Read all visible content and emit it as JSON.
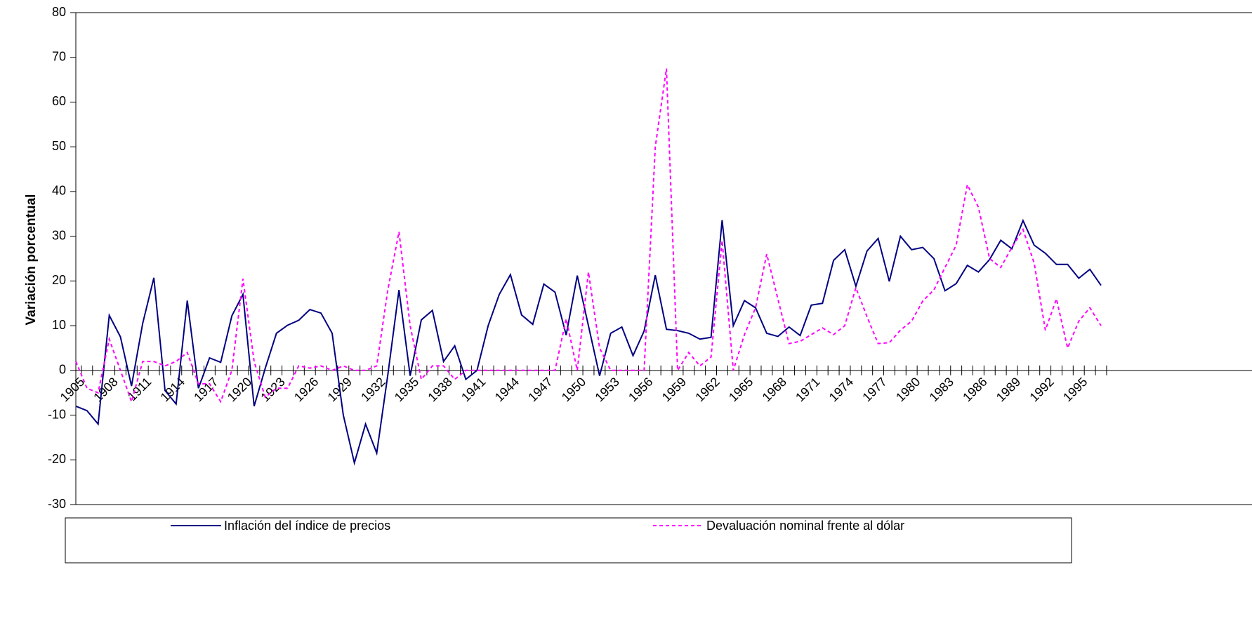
{
  "chart_data": {
    "type": "line",
    "ylabel": "Variación porcentual",
    "categories": [
      "1905",
      null,
      null,
      "1908",
      null,
      null,
      "1911",
      null,
      null,
      "1914",
      null,
      null,
      "1917",
      null,
      null,
      "1920",
      null,
      null,
      "1923",
      null,
      null,
      "1926",
      null,
      null,
      "1929",
      null,
      null,
      "1932",
      null,
      null,
      "1935",
      null,
      null,
      "1938",
      null,
      null,
      "1941",
      null,
      null,
      "1944",
      null,
      null,
      "1947",
      null,
      null,
      "1950",
      null,
      null,
      "1953",
      null,
      null,
      "1956",
      null,
      null,
      "1959",
      null,
      null,
      "1962",
      null,
      null,
      "1965",
      null,
      null,
      "1968",
      null,
      null,
      "1971",
      null,
      null,
      "1974",
      null,
      null,
      "1977",
      null,
      null,
      "1980",
      null,
      null,
      "1983",
      null,
      null,
      "1986",
      null,
      null,
      "1989",
      null,
      null,
      "1992",
      null,
      null,
      "1995",
      null,
      null
    ],
    "series": [
      {
        "name": "Inflación del índice de precios",
        "color": "#000080",
        "dashed": false,
        "values": [
          -8,
          -9,
          -12,
          12.3,
          7.5,
          -3.5,
          10.5,
          20.7,
          -4.5,
          -7.5,
          15.6,
          -4,
          2.8,
          1.8,
          12.2,
          17,
          -8,
          0.5,
          8.3,
          10.1,
          11.2,
          13.6,
          12.8,
          8.3,
          -10,
          -20.7,
          -12,
          -18.5,
          -1,
          18,
          -1.2,
          11.3,
          13.4,
          2,
          5.5,
          -2,
          0,
          10,
          17,
          21.4,
          12.4,
          10.3,
          19.3,
          17.5,
          7.9,
          21.2,
          10,
          -1.2,
          8.3,
          9.7,
          3.3,
          8.8,
          21.3,
          9.2,
          8.9,
          8.3,
          7,
          7.4,
          33.6,
          10,
          15.6,
          14,
          8.3,
          7.6,
          9.7,
          7.8,
          14.6,
          15,
          24.6,
          27,
          18.8,
          26.7,
          29.5,
          19.9,
          30,
          27,
          27.5,
          25,
          17.8,
          19.4,
          23.5,
          22,
          24.8,
          29.1,
          27.2,
          33.5,
          28,
          26.2,
          23.7,
          23.7,
          20.6,
          22.6,
          19
        ]
      },
      {
        "name": "Devaluación nominal frente al dólar",
        "color": "#ff00ff",
        "dashed": true,
        "values": [
          2,
          -4,
          -5,
          7,
          0,
          -7,
          2,
          2,
          1,
          2,
          4,
          -3,
          -3,
          -7,
          0,
          20.5,
          2,
          -6,
          -4,
          -4,
          1,
          0.5,
          1,
          0,
          1,
          0,
          0,
          1,
          18,
          31,
          10,
          -2,
          1,
          1,
          -2,
          0,
          0,
          0,
          0,
          0,
          0,
          0,
          0,
          0,
          11.5,
          0,
          22,
          5,
          0,
          0,
          0,
          0,
          50,
          67.5,
          0,
          4,
          1,
          3,
          29,
          0,
          8,
          14,
          26,
          16,
          6,
          6.5,
          8,
          9.5,
          8,
          10,
          18.5,
          12,
          6,
          6.2,
          9,
          11,
          15.5,
          18,
          23,
          28,
          41.5,
          36.5,
          25,
          23,
          27.5,
          31.5,
          24,
          9,
          16,
          5,
          11,
          14,
          10
        ]
      }
    ],
    "ylim": [
      -30,
      80
    ],
    "yticks": [
      -30,
      -20,
      -10,
      0,
      10,
      20,
      30,
      40,
      50,
      60,
      70,
      80
    ],
    "grid": false
  }
}
